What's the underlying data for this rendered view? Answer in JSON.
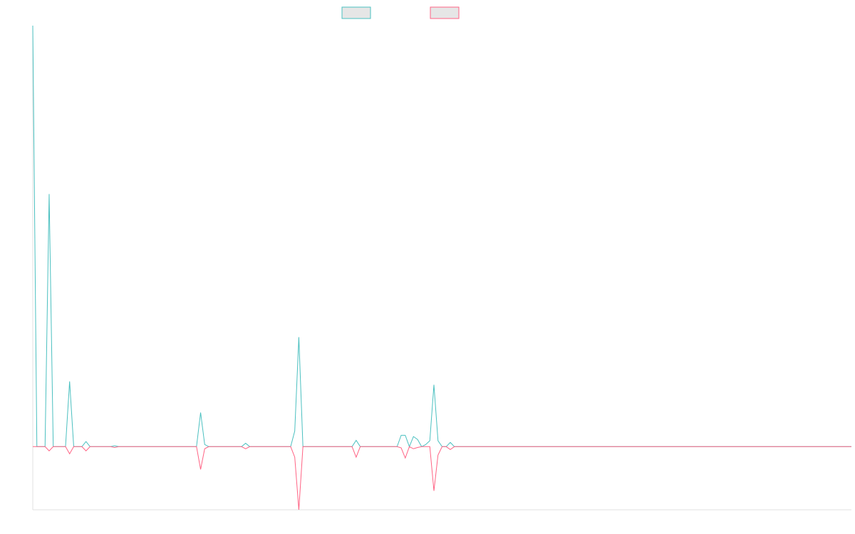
{
  "chart_data": {
    "type": "line",
    "grid": false,
    "ylim": [
      -15,
      100
    ],
    "series": [
      {
        "color": "#4bc0c0",
        "values": [
          100,
          0,
          0,
          0,
          60,
          0,
          0,
          0,
          0,
          15.5,
          0,
          0,
          0,
          1.2,
          0,
          0,
          0,
          0,
          0,
          0,
          0.2,
          0,
          0,
          0,
          0,
          0,
          0,
          0,
          0,
          0,
          0,
          0,
          0,
          0,
          0,
          0,
          0,
          0,
          0,
          0,
          0,
          8.1,
          0.5,
          0,
          0,
          0,
          0,
          0,
          0,
          0,
          0,
          0,
          0.8,
          0,
          0,
          0,
          0,
          0,
          0,
          0,
          0,
          0,
          0,
          0,
          3.7,
          26,
          0,
          0,
          0,
          0,
          0,
          0,
          0,
          0,
          0,
          0,
          0,
          0,
          0,
          1.5,
          0,
          0,
          0,
          0,
          0,
          0,
          0,
          0,
          0,
          0,
          2.7,
          2.7,
          0,
          2.4,
          1.7,
          0,
          0.5,
          1.4,
          14.7,
          1.4,
          0,
          0,
          1,
          0,
          0,
          0,
          0,
          0,
          0,
          0,
          0,
          0,
          0,
          0,
          0,
          0,
          0,
          0,
          0,
          0,
          0,
          0,
          0,
          0,
          0,
          0,
          0,
          0,
          0,
          0,
          0,
          0,
          0,
          0,
          0,
          0,
          0,
          0,
          0,
          0,
          0,
          0,
          0,
          0,
          0,
          0,
          0,
          0,
          0,
          0,
          0,
          0,
          0,
          0,
          0,
          0,
          0,
          0,
          0,
          0,
          0,
          0,
          0,
          0,
          0,
          0,
          0,
          0,
          0,
          0,
          0,
          0,
          0,
          0,
          0,
          0,
          0,
          0,
          0,
          0,
          0,
          0,
          0,
          0,
          0,
          0,
          0,
          0,
          0,
          0,
          0,
          0,
          0,
          0,
          0,
          0,
          0,
          0,
          0,
          0,
          0
        ]
      },
      {
        "color": "#ff6384",
        "values": [
          0,
          0,
          0,
          0,
          -1,
          0,
          0,
          0,
          0,
          -1.7,
          0,
          0,
          0,
          -1,
          0,
          0,
          0,
          0,
          0,
          0,
          -0.2,
          0,
          0,
          0,
          0,
          0,
          0,
          0,
          0,
          0,
          0,
          0,
          0,
          0,
          0,
          0,
          0,
          0,
          0,
          0,
          0,
          -5.4,
          -0.5,
          0,
          0,
          0,
          0,
          0,
          0,
          0,
          0,
          0,
          -0.5,
          0,
          0,
          0,
          0,
          0,
          0,
          0,
          0,
          0,
          0,
          0,
          -2.5,
          -15,
          0,
          0,
          0,
          0,
          0,
          0,
          0,
          0,
          0,
          0,
          0,
          0,
          0,
          -2.5,
          0,
          0,
          0,
          0,
          0,
          0,
          0,
          0,
          0,
          0,
          -0.3,
          -2.7,
          0,
          -0.5,
          -0.2,
          0,
          0,
          0,
          -10.5,
          -2,
          0,
          0,
          -0.7,
          0,
          0,
          0,
          0,
          0,
          0,
          0,
          0,
          0,
          0,
          0,
          0,
          0,
          0,
          0,
          0,
          0,
          0,
          0,
          0,
          0,
          0,
          0,
          0,
          0,
          0,
          0,
          0,
          0,
          0,
          0,
          0,
          0,
          0,
          0,
          0,
          0,
          0,
          0,
          0,
          0,
          0,
          0,
          0,
          0,
          0,
          0,
          0,
          0,
          0,
          0,
          0,
          0,
          0,
          0,
          0,
          0,
          0,
          0,
          0,
          0,
          0,
          0,
          0,
          0,
          0,
          0,
          0,
          0,
          0,
          0,
          0,
          0,
          0,
          0,
          0,
          0,
          0,
          0,
          0,
          0,
          0,
          0,
          0,
          0,
          0,
          0,
          0,
          0,
          0,
          0,
          0,
          0,
          0,
          0,
          0,
          0,
          0
        ]
      }
    ]
  }
}
